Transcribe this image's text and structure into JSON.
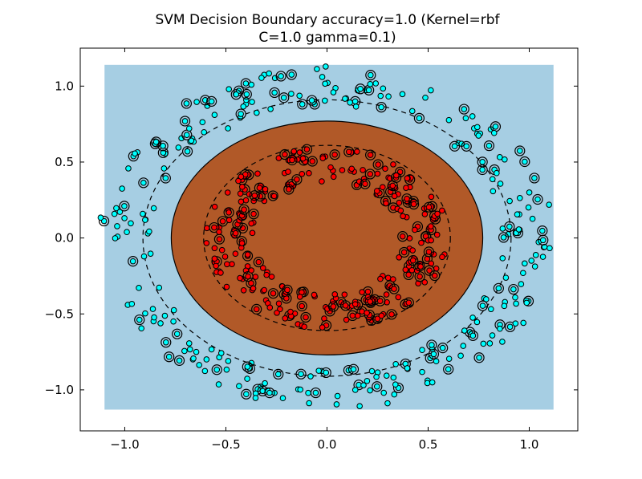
{
  "chart_data": {
    "type": "scatter",
    "title_lines": [
      "SVM Decision Boundary accuracy=1.0 (Kernel=rbf",
      "C=1.0 gamma=0.1)"
    ],
    "xlabel": "",
    "ylabel": "",
    "xlim": [
      -1.22,
      1.24
    ],
    "ylim": [
      -1.27,
      1.25
    ],
    "x_ticks": [
      -1.0,
      -0.5,
      0.0,
      0.5,
      1.0
    ],
    "x_tick_labels": [
      "−1.0",
      "−0.5",
      "0.0",
      "0.5",
      "1.0"
    ],
    "y_ticks": [
      -1.0,
      -0.5,
      0.0,
      0.5,
      1.0
    ],
    "y_tick_labels": [
      "−1.0",
      "−0.5",
      "0.0",
      "0.5",
      "1.0"
    ],
    "grid": false,
    "background_region": {
      "x": [
        -1.1,
        1.12
      ],
      "y": [
        -1.13,
        1.14
      ],
      "color": "#a6cee3"
    },
    "decision_boundary": {
      "cx": 0.0,
      "cy": 0.0,
      "rx": 0.77,
      "ry": 0.77,
      "color": "#b15928"
    },
    "margins": [
      {
        "rx": 0.91,
        "ry": 0.91
      },
      {
        "rx": 0.61,
        "ry": 0.61
      }
    ],
    "series": [
      {
        "class": "outer",
        "color": "#00ffff",
        "count": 300,
        "radius_range": [
          0.87,
          1.13
        ]
      },
      {
        "class": "inner",
        "color": "#ff0000",
        "count": 300,
        "radius_range": [
          0.37,
          0.6
        ]
      }
    ]
  }
}
